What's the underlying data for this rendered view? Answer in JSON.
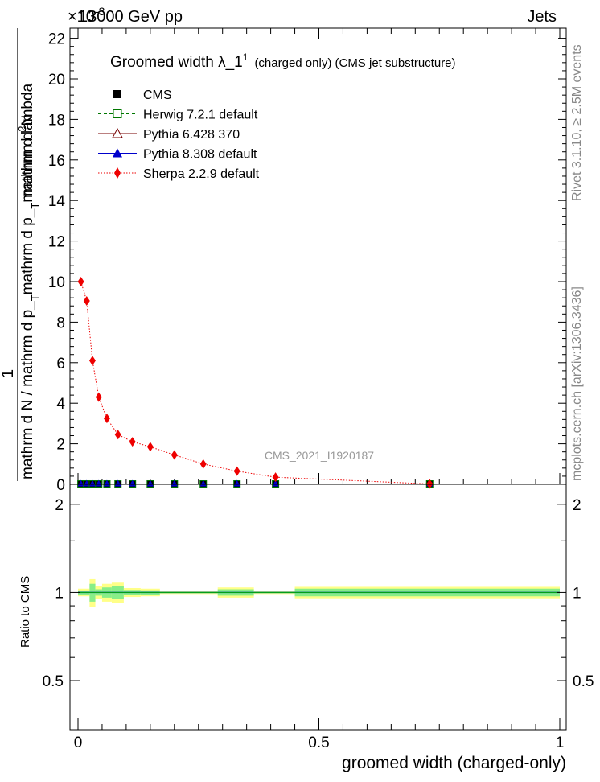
{
  "header": {
    "left": "13000 GeV pp",
    "right": "Jets",
    "exponent_text": "×10",
    "exponent_power": "-3"
  },
  "side": {
    "rivet": "Rivet 3.1.10, ≥ 2.5M events",
    "mcplots": "mcplots.cern.ch [arXiv:1306.3436]"
  },
  "watermark": "CMS_2021_I1920187",
  "legend": {
    "title_main": "Groomed width  λ_1",
    "title_sup": "1",
    "title_suffix": "(charged only) (CMS jet substructure)",
    "entries": [
      {
        "name": "CMS",
        "color": "#000000",
        "marker": "filled-square",
        "line": "none"
      },
      {
        "name": "Herwig 7.2.1 default",
        "color": "#007700",
        "marker": "open-square",
        "line": "dashed"
      },
      {
        "name": "Pythia 6.428 370",
        "color": "#770000",
        "marker": "open-triangle",
        "line": "solid"
      },
      {
        "name": "Pythia 8.308 default",
        "color": "#0000cc",
        "marker": "filled-triangle",
        "line": "solid"
      },
      {
        "name": "Sherpa 2.2.9 default",
        "color": "#ee0000",
        "marker": "filled-diamond",
        "line": "dotted"
      }
    ]
  },
  "chart_data": [
    {
      "type": "scatter",
      "panel": "main",
      "ylabel_num_left": "1",
      "ylabel_den_left": "mathrm d N / mathrm d p_",
      "ylabel_den_sub1": "T",
      "ylabel_den_mid": "mathrm d p_",
      "ylabel_den_sub2": "T",
      "ylabel_den_right": "mathrm d lambda",
      "ylabel_num": "mathrm d",
      "ylabel_num_sup": "2",
      "ylabel_num_end": "N",
      "xlim": [
        0,
        1.0
      ],
      "ylim": [
        0,
        22.5
      ],
      "y_scale_note": "×10^-3",
      "yticks": [
        0,
        2,
        4,
        6,
        8,
        10,
        12,
        14,
        16,
        18,
        20,
        22
      ],
      "ytick_labels": [
        "0",
        "2",
        "4",
        "6",
        "8",
        "10",
        "12",
        "14",
        "16",
        "18",
        "20",
        "22"
      ],
      "x": [
        0.006,
        0.018,
        0.03,
        0.043,
        0.06,
        0.083,
        0.113,
        0.15,
        0.2,
        0.26,
        0.33,
        0.41,
        0.73
      ],
      "series": [
        {
          "name": "Sherpa 2.2.9 default",
          "values": [
            10.0,
            9.05,
            6.1,
            4.3,
            3.25,
            2.45,
            2.1,
            1.85,
            1.45,
            1.0,
            0.65,
            0.35,
            0.02
          ]
        },
        {
          "name": "CMS",
          "values": [
            0.02,
            0.02,
            0.02,
            0.02,
            0.02,
            0.02,
            0.02,
            0.02,
            0.02,
            0.02,
            0.02,
            0.02,
            0.02
          ]
        }
      ]
    },
    {
      "type": "area",
      "panel": "ratio",
      "ylabel": "Ratio to CMS",
      "xlabel": "groomed width (charged-only)",
      "xlim": [
        0,
        1.0
      ],
      "xticks": [
        0,
        0.5,
        1
      ],
      "xtick_labels": [
        "0",
        "0.5",
        "1"
      ],
      "ylim": [
        0.34,
        2.34
      ],
      "yticks": [
        0.5,
        1,
        2
      ],
      "ytick_labels": [
        "0.5",
        "1",
        "2"
      ],
      "bins": [
        [
          0.0,
          0.024,
          0.03,
          0.016
        ],
        [
          0.024,
          0.036,
          0.11,
          0.07
        ],
        [
          0.036,
          0.05,
          0.05,
          0.025
        ],
        [
          0.05,
          0.07,
          0.07,
          0.04
        ],
        [
          0.07,
          0.095,
          0.08,
          0.05
        ],
        [
          0.095,
          0.13,
          0.035,
          0.02
        ],
        [
          0.13,
          0.17,
          0.03,
          0.017
        ],
        [
          0.17,
          0.29,
          0.012,
          0.006
        ],
        [
          0.29,
          0.365,
          0.04,
          0.025
        ],
        [
          0.365,
          0.45,
          0.012,
          0.006
        ],
        [
          0.45,
          1.0,
          0.045,
          0.03
        ]
      ]
    }
  ]
}
